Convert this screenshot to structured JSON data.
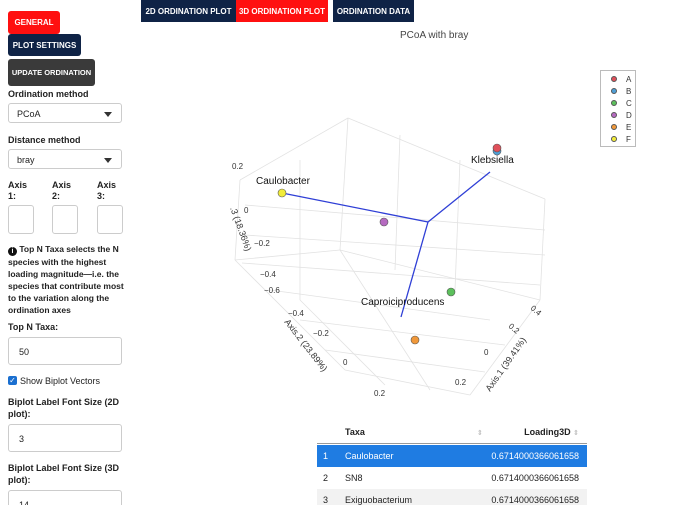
{
  "sidebar": {
    "general_label": "GENERAL",
    "plot_settings_label": "PLOT SETTINGS",
    "update_label": "UPDATE ORDINATION",
    "ordination_method_label": "Ordination method",
    "ordination_method_value": "PCoA",
    "distance_method_label": "Distance method",
    "distance_method_value": "bray",
    "axis1_label_a": "Axis",
    "axis1_label_b": "1:",
    "axis2_label_a": "Axis",
    "axis2_label_b": "2:",
    "axis3_label_a": "Axis",
    "axis3_label_b": "3:",
    "info_text": "Top N Taxa selects the N species with the highest loading magnitude—i.e. the species that contribute most to the variation along the ordination axes",
    "top_n_label": "Top N Taxa:",
    "top_n_value": "50",
    "show_biplot_label": "Show Biplot Vectors",
    "font2d_label": "Biplot Label Font Size (2D plot):",
    "font2d_value": "3",
    "font3d_label": "Biplot Label Font Size (3D plot):",
    "font3d_value": "14"
  },
  "tabs": [
    "2D ORDINATION PLOT",
    "3D ORDINATION PLOT",
    "ORDINATION DATA"
  ],
  "plot": {
    "title": "PCoA with bray",
    "labels": {
      "klebsiella": "Klebsiella",
      "caulobacter": "Caulobacter",
      "caproici": "Caproiciproducens"
    },
    "axis1_title": "Axis.1 (39.41%)",
    "axis2_title": "Axis.2 (23.89%)",
    "axis3_title": ".3 (18.36%)",
    "ticks": {
      "z": [
        "0.2",
        "0",
        "−0.2",
        "−0.4",
        "−0.6"
      ],
      "y": [
        "−0.4",
        "−0.2",
        "0",
        "0.2"
      ],
      "x": [
        "0.4",
        "0.2",
        "0",
        "−0.2",
        "0.2"
      ]
    }
  },
  "legend": [
    {
      "label": "A",
      "color": "#e0505a"
    },
    {
      "label": "B",
      "color": "#4f9fd6"
    },
    {
      "label": "C",
      "color": "#5cc05c"
    },
    {
      "label": "D",
      "color": "#b56ac0"
    },
    {
      "label": "E",
      "color": "#f0983a"
    },
    {
      "label": "F",
      "color": "#f2ec3a"
    }
  ],
  "table": {
    "headers": [
      "Taxa",
      "Loading3D"
    ],
    "rows": [
      {
        "n": "1",
        "taxa": "Caulobacter",
        "loading": "0.6714000366061658"
      },
      {
        "n": "2",
        "taxa": "SN8",
        "loading": "0.6714000366061658"
      },
      {
        "n": "3",
        "taxa": "Exiguobacterium",
        "loading": "0.6714000366061658"
      }
    ]
  }
}
